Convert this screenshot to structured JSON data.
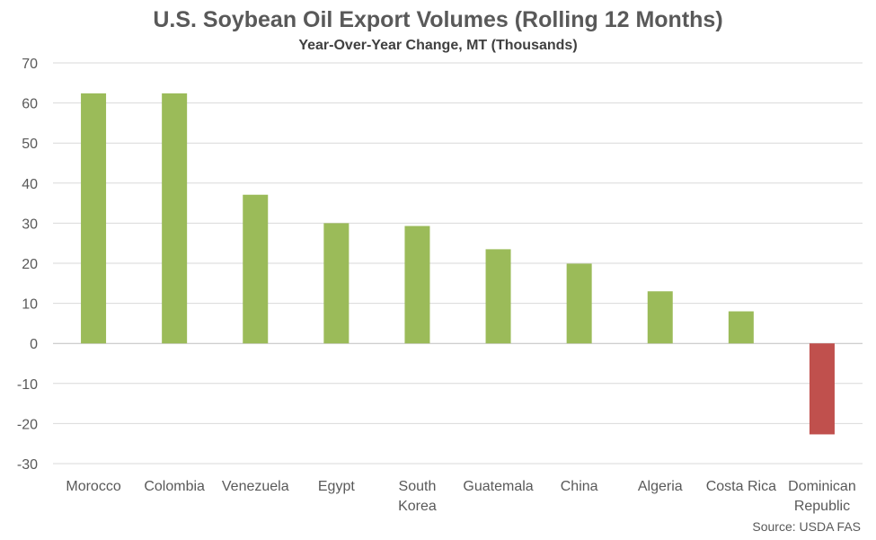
{
  "chart_data": {
    "type": "bar",
    "title": "U.S. Soybean Oil Export Volumes (Rolling 12 Months)",
    "subtitle": "Year-Over-Year Change, MT (Thousands)",
    "source": "Source: USDA FAS",
    "xlabel": "",
    "ylabel": "",
    "ylim": [
      -30,
      70
    ],
    "yticks": [
      70,
      60,
      50,
      40,
      30,
      20,
      10,
      0,
      -10,
      -20,
      -30
    ],
    "grid": true,
    "categories": [
      [
        "Morocco"
      ],
      [
        "Colombia"
      ],
      [
        "Venezuela"
      ],
      [
        "Egypt"
      ],
      [
        "South",
        "Korea"
      ],
      [
        "Guatemala"
      ],
      [
        "China"
      ],
      [
        "Algeria"
      ],
      [
        "Costa Rica"
      ],
      [
        "Dominican",
        "Republic"
      ]
    ],
    "values": [
      62.4,
      62.4,
      37.1,
      30.0,
      29.3,
      23.5,
      19.9,
      13.0,
      8.0,
      -22.7
    ],
    "colors": {
      "positive": "#9bbb59",
      "negative": "#c0504d",
      "grid": "#d9d9d9",
      "axis": "#bfbfbf"
    }
  }
}
